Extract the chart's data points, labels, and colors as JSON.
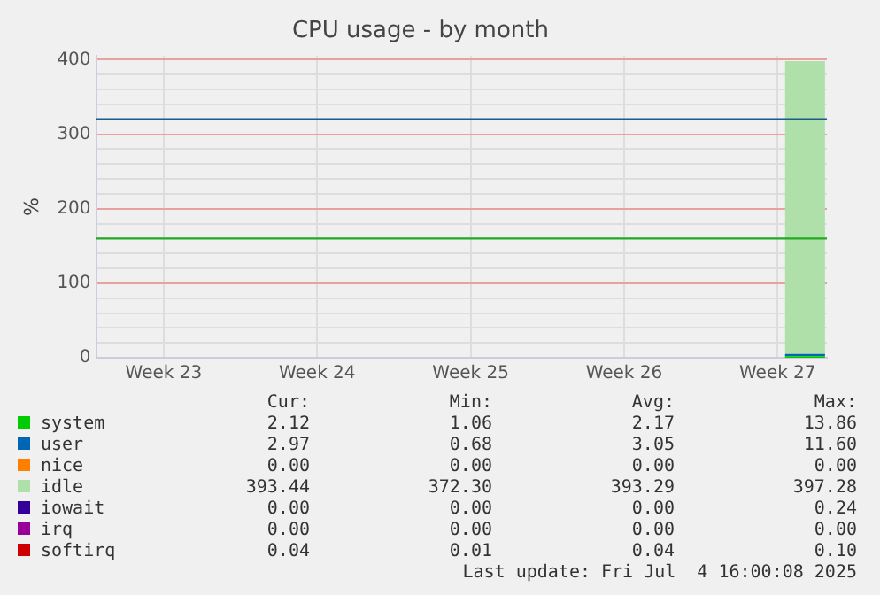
{
  "chart_data": {
    "type": "area",
    "stacked": true,
    "title": "CPU usage - by month",
    "ylabel": "%",
    "x": [
      "2025-07-03T06:00",
      "2025-07-05T02:00"
    ],
    "xlim": [
      "2025-06-01T20:00",
      "2025-07-05T04:00"
    ],
    "xticks": [
      {
        "value": "2025-06-04T22:00",
        "label": "Week 23"
      },
      {
        "value": "2025-06-11T22:00",
        "label": "Week 24"
      },
      {
        "value": "2025-06-18T22:00",
        "label": "Week 25"
      },
      {
        "value": "2025-06-25T22:00",
        "label": "Week 26"
      },
      {
        "value": "2025-07-02T22:00",
        "label": "Week 27"
      }
    ],
    "ylim": [
      0,
      405
    ],
    "yticks": [
      0,
      {
        "value": 20,
        "label": null
      },
      {
        "value": 40,
        "label": null
      },
      {
        "value": 60,
        "label": null
      },
      {
        "value": 80,
        "label": null
      },
      100,
      {
        "value": 120,
        "label": null
      },
      {
        "value": 140,
        "label": null
      },
      {
        "value": 160,
        "label": null
      },
      {
        "value": 180,
        "label": null
      },
      200,
      {
        "value": 220,
        "label": null
      },
      {
        "value": 240,
        "label": null
      },
      {
        "value": 260,
        "label": null
      },
      {
        "value": 280,
        "label": null
      },
      300,
      {
        "value": 320,
        "label": null
      },
      {
        "value": 340,
        "label": null
      },
      {
        "value": 360,
        "label": null
      },
      {
        "value": 380,
        "label": null
      },
      400
    ],
    "grid": true,
    "legend": "bottom",
    "series": [
      {
        "name": "system",
        "color": "#00cc00",
        "values": [
          2,
          2
        ]
      },
      {
        "name": "user",
        "color": "#0066b3",
        "values": [
          3,
          3
        ]
      },
      {
        "name": "nice",
        "color": "#ff8000",
        "values": [
          null,
          null
        ]
      },
      {
        "name": "idle",
        "color": "#b0e0aa",
        "values": [
          393,
          393
        ]
      },
      {
        "name": "iowait",
        "color": "#330099",
        "values": [
          null,
          null
        ]
      },
      {
        "name": "irq",
        "color": "#990099",
        "values": [
          null,
          null
        ]
      },
      {
        "name": "softirq",
        "color": "#cc0000",
        "values": [
          null,
          null
        ]
      }
    ],
    "ref_lines": [
      {
        "axis": "y",
        "value": 320,
        "color": "#1a5a8c"
      },
      {
        "axis": "y",
        "value": 160,
        "color": "#22aa22"
      }
    ],
    "annotations": [
      "Cur:",
      "Min:",
      "Avg:",
      "Max:",
      "2.12",
      "1.06",
      "2.17",
      "13.86",
      "2.97",
      "0.68",
      "3.05",
      "11.60",
      "0.00",
      "0.00",
      "0.00",
      "0.00",
      "393.44",
      "372.30",
      "393.29",
      "397.28",
      "0.00",
      "0.00",
      "0.00",
      "0.24",
      "0.00",
      "0.00",
      "0.00",
      "0.00",
      "0.04",
      "0.01",
      "0.04",
      "0.10",
      "Last update: Fri Jul  4 16:00:08 2025"
    ]
  }
}
